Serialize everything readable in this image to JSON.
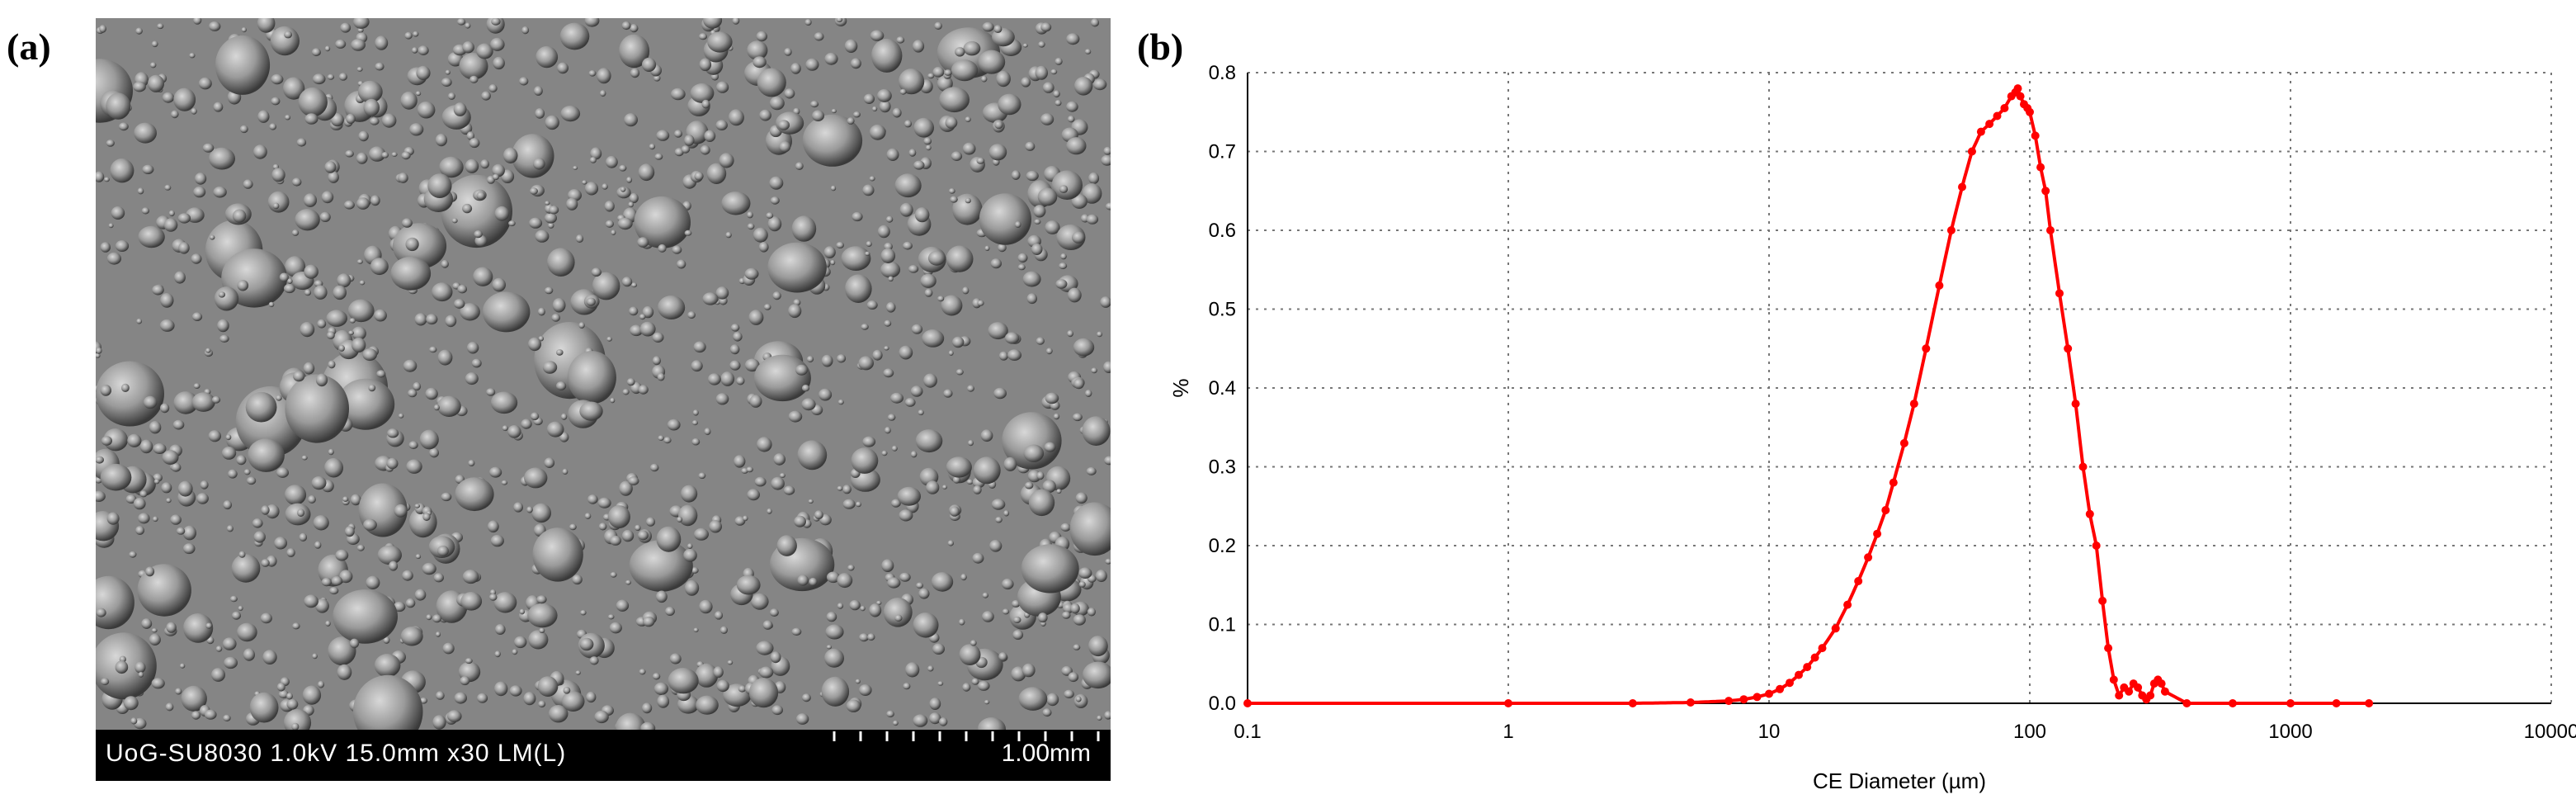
{
  "figure": {
    "panel_a_label": "(a)",
    "panel_b_label": "(b)"
  },
  "sem": {
    "info_text": "UoG-SU8030 1.0kV 15.0mm x30 LM(L)",
    "scale_bar_label": "1.00mm",
    "scale_tick_count": 11
  },
  "chart_data": {
    "type": "scatter",
    "xlabel": "CE Diameter (µm)",
    "ylabel": "%",
    "xscale": "log",
    "xlim": [
      0.1,
      10000
    ],
    "ylim": [
      0,
      0.8
    ],
    "x_ticks": [
      "0.1",
      "1",
      "10",
      "100",
      "1000",
      "10000"
    ],
    "y_ticks": [
      "0.0",
      "0.1",
      "0.2",
      "0.3",
      "0.4",
      "0.5",
      "0.6",
      "0.7",
      "0.8"
    ],
    "grid": true,
    "color": "#ff0000",
    "series": [
      {
        "x": [
          0.1,
          1,
          3,
          5,
          7,
          8,
          9,
          10,
          11,
          12,
          13,
          14,
          15,
          16,
          18,
          20,
          22,
          24,
          26,
          28,
          30,
          33,
          36,
          40,
          45,
          50,
          55,
          60,
          65,
          70,
          75,
          80,
          85,
          88,
          90,
          92,
          95,
          98,
          100,
          105,
          110,
          115,
          120,
          130,
          140,
          150,
          160,
          170,
          180,
          190,
          200,
          210,
          220,
          230,
          240,
          250,
          260,
          270,
          280,
          290,
          300,
          310,
          320,
          330,
          400,
          600,
          1000,
          1500,
          2000
        ],
        "y": [
          0,
          0,
          0,
          0.001,
          0.003,
          0.005,
          0.008,
          0.012,
          0.018,
          0.026,
          0.036,
          0.046,
          0.058,
          0.07,
          0.095,
          0.125,
          0.155,
          0.185,
          0.215,
          0.245,
          0.28,
          0.33,
          0.38,
          0.45,
          0.53,
          0.6,
          0.655,
          0.7,
          0.725,
          0.735,
          0.745,
          0.755,
          0.77,
          0.775,
          0.78,
          0.77,
          0.76,
          0.755,
          0.75,
          0.72,
          0.68,
          0.65,
          0.6,
          0.52,
          0.45,
          0.38,
          0.3,
          0.24,
          0.2,
          0.13,
          0.07,
          0.03,
          0.01,
          0.02,
          0.015,
          0.025,
          0.02,
          0.01,
          0.005,
          0.01,
          0.025,
          0.03,
          0.025,
          0.015,
          0,
          0,
          0,
          0,
          0
        ]
      }
    ]
  }
}
